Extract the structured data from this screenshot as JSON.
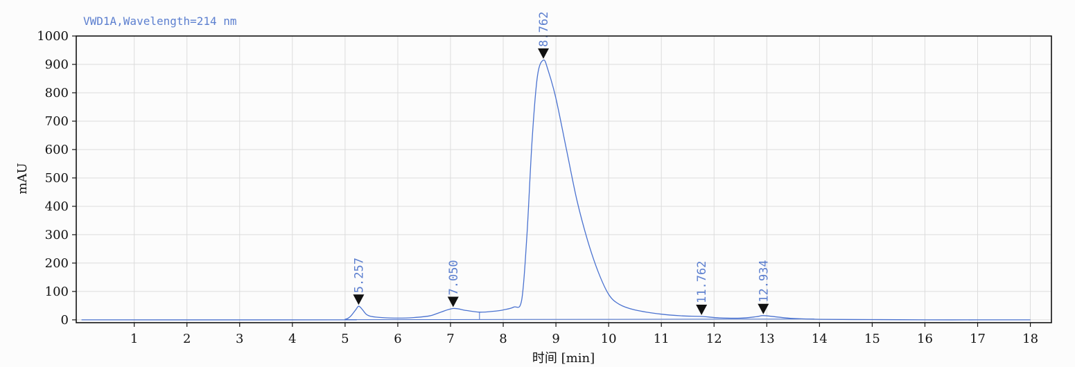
{
  "chart_data": {
    "type": "line",
    "signal_title": "VWD1A,Wavelength=214 nm",
    "xlabel": "时间 [min]",
    "ylabel": "mAU",
    "xlim": [
      -0.1,
      18.4
    ],
    "ylim": [
      -10,
      1000
    ],
    "xticks": [
      1,
      2,
      3,
      4,
      5,
      6,
      7,
      8,
      9,
      10,
      11,
      12,
      13,
      14,
      15,
      16,
      17,
      18
    ],
    "yticks": [
      0,
      100,
      200,
      300,
      400,
      500,
      600,
      700,
      800,
      900,
      1000
    ],
    "grid": true,
    "colors": {
      "trace": "#4a72d0",
      "label": "#5c7fcf",
      "marker": "#111111",
      "grid": "#dcdcdc"
    },
    "x": [
      0,
      4.8,
      5.0,
      5.1,
      5.2,
      5.257,
      5.32,
      5.4,
      5.5,
      5.7,
      6.0,
      6.3,
      6.6,
      6.8,
      7.05,
      7.3,
      7.55,
      7.8,
      8.0,
      8.2,
      8.35,
      8.45,
      8.55,
      8.65,
      8.762,
      8.85,
      9.0,
      9.2,
      9.4,
      9.6,
      9.8,
      10.0,
      10.2,
      10.5,
      11.0,
      11.4,
      11.762,
      12.1,
      12.5,
      12.8,
      12.934,
      13.2,
      13.5,
      14.0,
      15.0,
      16.0,
      17.0,
      18.0
    ],
    "y": [
      0,
      0,
      2,
      12,
      35,
      48,
      38,
      20,
      12,
      8,
      6,
      8,
      14,
      26,
      40,
      33,
      27,
      30,
      35,
      45,
      70,
      300,
      640,
      860,
      915,
      880,
      780,
      600,
      420,
      280,
      170,
      90,
      55,
      35,
      20,
      14,
      12,
      7,
      6,
      11,
      15,
      10,
      5,
      2,
      1,
      0,
      0,
      0
    ],
    "peaks": [
      {
        "label": "5.257",
        "x": 5.257,
        "y": 48
      },
      {
        "label": "7.050",
        "x": 7.05,
        "y": 40
      },
      {
        "label": "8.762",
        "x": 8.762,
        "y": 915
      },
      {
        "label": "11.762",
        "x": 11.762,
        "y": 12
      },
      {
        "label": "12.934",
        "x": 12.934,
        "y": 15
      }
    ]
  }
}
